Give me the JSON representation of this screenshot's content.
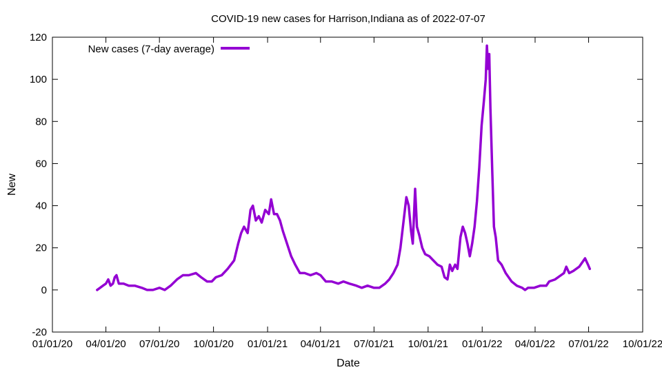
{
  "chart_data": {
    "type": "line",
    "title": "COVID-19 new cases for Harrison,Indiana as of 2022-07-07",
    "xlabel": "Date",
    "ylabel": "New",
    "x_is_date": true,
    "xlim": [
      "2020-01-01",
      "2022-10-01"
    ],
    "ylim": [
      -20,
      120
    ],
    "x_ticks": [
      "2020-01-01",
      "2020-04-01",
      "2020-07-01",
      "2020-10-01",
      "2021-01-01",
      "2021-04-01",
      "2021-07-01",
      "2021-10-01",
      "2022-01-01",
      "2022-04-01",
      "2022-07-01",
      "2022-10-01"
    ],
    "x_tick_labels": [
      "01/01/20",
      "04/01/20",
      "07/01/20",
      "10/01/20",
      "01/01/21",
      "04/01/21",
      "07/01/21",
      "10/01/21",
      "01/01/22",
      "04/01/22",
      "07/01/22",
      "10/01/22"
    ],
    "y_ticks": [
      -20,
      0,
      20,
      40,
      60,
      80,
      100,
      120
    ],
    "y_tick_labels": [
      "-20",
      "0",
      "20",
      "40",
      "60",
      "80",
      "100",
      "120"
    ],
    "grid": false,
    "legend_position": "top-left",
    "series": [
      {
        "name": "New cases (7-day average)",
        "color": "#9400d3",
        "points": [
          [
            "2020-03-17",
            0
          ],
          [
            "2020-03-22",
            1
          ],
          [
            "2020-03-27",
            2
          ],
          [
            "2020-04-01",
            3
          ],
          [
            "2020-04-05",
            5
          ],
          [
            "2020-04-09",
            2
          ],
          [
            "2020-04-13",
            3
          ],
          [
            "2020-04-16",
            6
          ],
          [
            "2020-04-19",
            7
          ],
          [
            "2020-04-23",
            3
          ],
          [
            "2020-05-01",
            3
          ],
          [
            "2020-05-10",
            2
          ],
          [
            "2020-05-20",
            2
          ],
          [
            "2020-06-01",
            1
          ],
          [
            "2020-06-10",
            0
          ],
          [
            "2020-06-20",
            0
          ],
          [
            "2020-07-01",
            1
          ],
          [
            "2020-07-10",
            0
          ],
          [
            "2020-07-20",
            2
          ],
          [
            "2020-07-31",
            5
          ],
          [
            "2020-08-10",
            7
          ],
          [
            "2020-08-20",
            7
          ],
          [
            "2020-09-01",
            8
          ],
          [
            "2020-09-10",
            6
          ],
          [
            "2020-09-20",
            4
          ],
          [
            "2020-09-28",
            4
          ],
          [
            "2020-10-05",
            6
          ],
          [
            "2020-10-15",
            7
          ],
          [
            "2020-10-25",
            10
          ],
          [
            "2020-11-05",
            14
          ],
          [
            "2020-11-12",
            22
          ],
          [
            "2020-11-17",
            27
          ],
          [
            "2020-11-22",
            30
          ],
          [
            "2020-11-28",
            27
          ],
          [
            "2020-12-03",
            38
          ],
          [
            "2020-12-07",
            40
          ],
          [
            "2020-12-12",
            33
          ],
          [
            "2020-12-17",
            35
          ],
          [
            "2020-12-22",
            32
          ],
          [
            "2020-12-28",
            38
          ],
          [
            "2021-01-03",
            36
          ],
          [
            "2021-01-07",
            43
          ],
          [
            "2021-01-12",
            36
          ],
          [
            "2021-01-17",
            36
          ],
          [
            "2021-01-22",
            33
          ],
          [
            "2021-01-27",
            28
          ],
          [
            "2021-02-03",
            22
          ],
          [
            "2021-02-10",
            16
          ],
          [
            "2021-02-17",
            12
          ],
          [
            "2021-02-25",
            8
          ],
          [
            "2021-03-05",
            8
          ],
          [
            "2021-03-15",
            7
          ],
          [
            "2021-03-25",
            8
          ],
          [
            "2021-04-01",
            7
          ],
          [
            "2021-04-10",
            4
          ],
          [
            "2021-04-20",
            4
          ],
          [
            "2021-05-01",
            3
          ],
          [
            "2021-05-10",
            4
          ],
          [
            "2021-05-20",
            3
          ],
          [
            "2021-06-01",
            2
          ],
          [
            "2021-06-10",
            1
          ],
          [
            "2021-06-20",
            2
          ],
          [
            "2021-07-01",
            1
          ],
          [
            "2021-07-10",
            1
          ],
          [
            "2021-07-20",
            3
          ],
          [
            "2021-07-27",
            5
          ],
          [
            "2021-08-03",
            8
          ],
          [
            "2021-08-10",
            12
          ],
          [
            "2021-08-15",
            20
          ],
          [
            "2021-08-20",
            32
          ],
          [
            "2021-08-25",
            44
          ],
          [
            "2021-08-29",
            40
          ],
          [
            "2021-09-02",
            28
          ],
          [
            "2021-09-05",
            22
          ],
          [
            "2021-09-09",
            48
          ],
          [
            "2021-09-12",
            30
          ],
          [
            "2021-09-16",
            26
          ],
          [
            "2021-09-21",
            20
          ],
          [
            "2021-09-26",
            17
          ],
          [
            "2021-10-03",
            16
          ],
          [
            "2021-10-10",
            14
          ],
          [
            "2021-10-17",
            12
          ],
          [
            "2021-10-24",
            11
          ],
          [
            "2021-10-29",
            6
          ],
          [
            "2021-11-03",
            5
          ],
          [
            "2021-11-07",
            12
          ],
          [
            "2021-11-11",
            9
          ],
          [
            "2021-11-16",
            12
          ],
          [
            "2021-11-20",
            10
          ],
          [
            "2021-11-25",
            25
          ],
          [
            "2021-11-29",
            30
          ],
          [
            "2021-12-03",
            27
          ],
          [
            "2021-12-07",
            22
          ],
          [
            "2021-12-11",
            16
          ],
          [
            "2021-12-15",
            22
          ],
          [
            "2021-12-19",
            30
          ],
          [
            "2021-12-23",
            42
          ],
          [
            "2021-12-27",
            58
          ],
          [
            "2021-12-31",
            78
          ],
          [
            "2022-01-04",
            90
          ],
          [
            "2022-01-07",
            100
          ],
          [
            "2022-01-09",
            116
          ],
          [
            "2022-01-11",
            105
          ],
          [
            "2022-01-13",
            112
          ],
          [
            "2022-01-15",
            86
          ],
          [
            "2022-01-18",
            58
          ],
          [
            "2022-01-21",
            30
          ],
          [
            "2022-01-24",
            25
          ],
          [
            "2022-01-28",
            14
          ],
          [
            "2022-02-03",
            12
          ],
          [
            "2022-02-10",
            8
          ],
          [
            "2022-02-20",
            4
          ],
          [
            "2022-03-01",
            2
          ],
          [
            "2022-03-10",
            1
          ],
          [
            "2022-03-15",
            0
          ],
          [
            "2022-03-20",
            1
          ],
          [
            "2022-03-30",
            1
          ],
          [
            "2022-04-10",
            2
          ],
          [
            "2022-04-20",
            2
          ],
          [
            "2022-04-25",
            4
          ],
          [
            "2022-05-05",
            5
          ],
          [
            "2022-05-15",
            7
          ],
          [
            "2022-05-20",
            8
          ],
          [
            "2022-05-24",
            11
          ],
          [
            "2022-05-29",
            8
          ],
          [
            "2022-06-05",
            9
          ],
          [
            "2022-06-15",
            11
          ],
          [
            "2022-06-20",
            13
          ],
          [
            "2022-06-25",
            15
          ],
          [
            "2022-06-30",
            12
          ],
          [
            "2022-07-03",
            10
          ]
        ]
      }
    ]
  }
}
